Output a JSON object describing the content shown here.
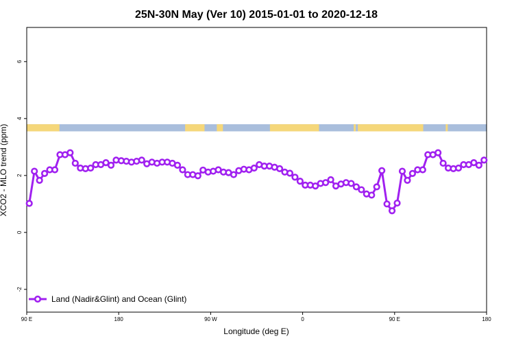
{
  "chart_data": {
    "type": "line",
    "title": "25N-30N May (Ver 10)   2015-01-01 to 2020-12-18",
    "xlabel": "Longitude (deg E)",
    "ylabel": "XCO2 - MLO trend (ppm)",
    "xlim": [
      90,
      540
    ],
    "ylim": [
      -2.8,
      7.2
    ],
    "x_ticks": [
      {
        "value": 90,
        "label": "90 E"
      },
      {
        "value": 180,
        "label": "180"
      },
      {
        "value": 270,
        "label": "90 W"
      },
      {
        "value": 360,
        "label": "0"
      },
      {
        "value": 450,
        "label": "90 E"
      },
      {
        "value": 540,
        "label": "180"
      }
    ],
    "y_ticks": [
      {
        "value": -2,
        "label": "-2"
      },
      {
        "value": 0,
        "label": "0"
      },
      {
        "value": 2,
        "label": "2"
      },
      {
        "value": 4,
        "label": "4"
      },
      {
        "value": 6,
        "label": "6"
      }
    ],
    "grid": false,
    "legend_position": "bottom-left",
    "colors": {
      "series": "#a020f0",
      "land": "#f5d77a",
      "ocean": "#a9bedc"
    },
    "surface_band": {
      "y_range": [
        3.55,
        3.8
      ],
      "land_segments": [
        [
          90,
          122
        ],
        [
          245,
          264
        ],
        [
          276,
          282
        ],
        [
          328,
          376
        ],
        [
          410,
          412
        ],
        [
          414,
          478
        ],
        [
          500,
          502
        ]
      ]
    },
    "series": [
      {
        "name": "Land (Nadir&Glint) and Ocean (Glint)",
        "x": [
          92.5,
          97.5,
          102.5,
          107.5,
          112.5,
          117.5,
          122.5,
          127.5,
          132.5,
          137.5,
          142.5,
          147.5,
          152.5,
          157.5,
          162.5,
          167.5,
          172.5,
          177.5,
          182.5,
          187.5,
          192.5,
          197.5,
          202.5,
          207.5,
          212.5,
          217.5,
          222.5,
          227.5,
          232.5,
          237.5,
          242.5,
          247.5,
          252.5,
          257.5,
          262.5,
          267.5,
          272.5,
          277.5,
          282.5,
          287.5,
          292.5,
          297.5,
          302.5,
          307.5,
          312.5,
          317.5,
          322.5,
          327.5,
          332.5,
          337.5,
          342.5,
          347.5,
          352.5,
          357.5,
          362.5,
          367.5,
          372.5,
          377.5,
          382.5,
          387.5,
          392.5,
          397.5,
          402.5,
          407.5,
          412.5,
          417.5,
          422.5,
          427.5,
          432.5,
          437.5,
          442.5,
          447.5,
          452.5,
          457.5,
          462.5,
          467.5,
          472.5,
          477.5,
          482.5,
          487.5,
          492.5,
          497.5,
          502.5,
          507.5,
          512.5,
          517.5,
          522.5,
          527.5,
          532.5,
          537.5
        ],
        "values": [
          1.02,
          2.15,
          1.83,
          2.07,
          2.2,
          2.2,
          2.73,
          2.73,
          2.8,
          2.43,
          2.26,
          2.24,
          2.26,
          2.38,
          2.38,
          2.45,
          2.36,
          2.54,
          2.52,
          2.5,
          2.47,
          2.5,
          2.54,
          2.41,
          2.47,
          2.43,
          2.47,
          2.47,
          2.43,
          2.36,
          2.2,
          2.03,
          2.03,
          1.99,
          2.19,
          2.12,
          2.15,
          2.2,
          2.12,
          2.1,
          2.03,
          2.17,
          2.22,
          2.2,
          2.26,
          2.38,
          2.33,
          2.33,
          2.29,
          2.24,
          2.12,
          2.08,
          1.94,
          1.8,
          1.66,
          1.66,
          1.63,
          1.72,
          1.75,
          1.85,
          1.63,
          1.7,
          1.75,
          1.72,
          1.6,
          1.5,
          1.35,
          1.31,
          1.6,
          2.17,
          1.0,
          0.76,
          1.03,
          2.15,
          1.83,
          2.07,
          2.2,
          2.2,
          2.73,
          2.73,
          2.8,
          2.43,
          2.26,
          2.24,
          2.26,
          2.38,
          2.38,
          2.45,
          2.36,
          2.54
        ]
      }
    ]
  }
}
